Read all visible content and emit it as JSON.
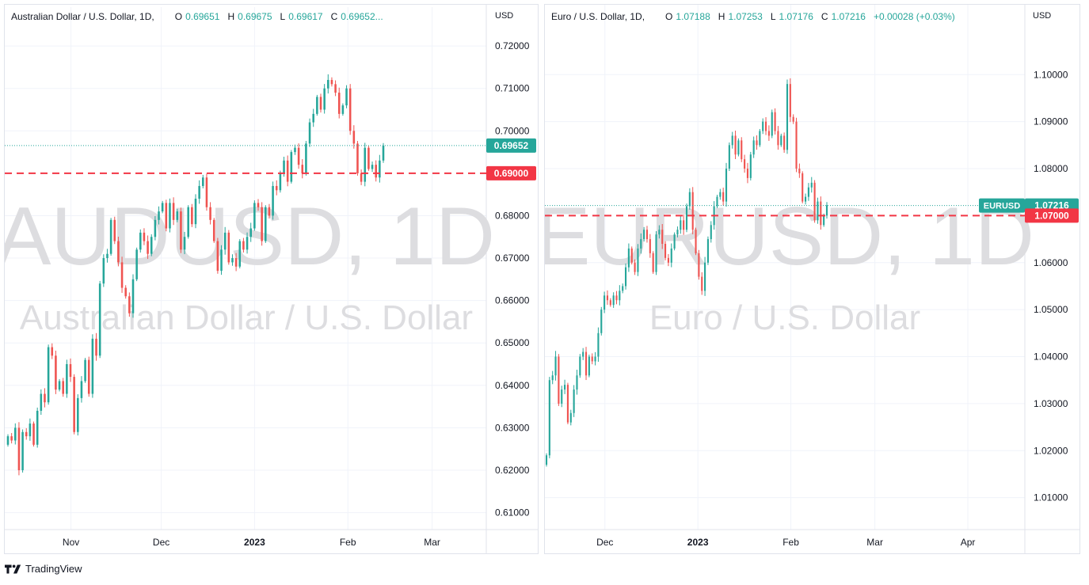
{
  "footer": {
    "brand": "TradingView",
    "logo_icon": "tradingview-logo-icon"
  },
  "colors": {
    "up": "#26a69a",
    "down": "#ef5350",
    "level": "#f23645",
    "grid": "#f0f3fa",
    "watermark": "#dddde0"
  },
  "chart_data": [
    {
      "type": "candlestick",
      "symbol": "AUDUSD",
      "title": "Australian Dollar / U.S. Dollar, 1D,",
      "watermark_symbol": "AUDUSD, 1D",
      "watermark_name": "Australian Dollar / U.S. Dollar",
      "currency": "USD",
      "ohlc_legend": {
        "O": "0.69651",
        "H": "0.69675",
        "L": "0.69617",
        "C": "0.69652..."
      },
      "ylim": [
        0.606,
        0.7245
      ],
      "y_ticks": [
        "0.72000",
        "0.71000",
        "0.70000",
        "0.68000",
        "0.67000",
        "0.66000",
        "0.65000",
        "0.64000",
        "0.63000",
        "0.62000",
        "0.61000"
      ],
      "x_ticks": [
        {
          "label": "Nov",
          "date": "2022-11-01",
          "bold": false
        },
        {
          "label": "Dec",
          "date": "2022-12-01",
          "bold": false
        },
        {
          "label": "2023",
          "date": "2023-01-01",
          "bold": true
        },
        {
          "label": "Feb",
          "date": "2023-02-01",
          "bold": false
        },
        {
          "label": "Mar",
          "date": "2023-03-01",
          "bold": false
        }
      ],
      "x_range": [
        "2022-10-10",
        "2023-03-19"
      ],
      "last_price": {
        "value": 0.69652,
        "label": "0.69652"
      },
      "level": {
        "value": 0.69,
        "label": "0.69000"
      },
      "closes": [
        0.628,
        0.627,
        0.63,
        0.62,
        0.629,
        0.628,
        0.631,
        0.626,
        0.634,
        0.638,
        0.636,
        0.649,
        0.647,
        0.639,
        0.641,
        0.638,
        0.645,
        0.642,
        0.629,
        0.637,
        0.641,
        0.646,
        0.638,
        0.651,
        0.647,
        0.664,
        0.67,
        0.671,
        0.679,
        0.674,
        0.669,
        0.663,
        0.661,
        0.657,
        0.665,
        0.672,
        0.676,
        0.674,
        0.671,
        0.675,
        0.679,
        0.681,
        0.683,
        0.677,
        0.683,
        0.679,
        0.681,
        0.672,
        0.675,
        0.682,
        0.678,
        0.684,
        0.687,
        0.689,
        0.682,
        0.679,
        0.674,
        0.667,
        0.672,
        0.676,
        0.669,
        0.67,
        0.668,
        0.674,
        0.672,
        0.675,
        0.677,
        0.683,
        0.682,
        0.674,
        0.682,
        0.68,
        0.687,
        0.686,
        0.69,
        0.693,
        0.688,
        0.695,
        0.696,
        0.692,
        0.69,
        0.697,
        0.702,
        0.704,
        0.708,
        0.705,
        0.71,
        0.712,
        0.711,
        0.709,
        0.704,
        0.706,
        0.71,
        0.7,
        0.697,
        0.69,
        0.688,
        0.696,
        0.691,
        0.692,
        0.689,
        0.693,
        0.6965
      ]
    },
    {
      "type": "candlestick",
      "symbol": "EURUSD",
      "title": "Euro / U.S. Dollar, 1D,",
      "watermark_symbol": "EURUSD, 1D",
      "watermark_name": "Euro / U.S. Dollar",
      "currency": "USD",
      "ohlc_legend": {
        "O": "1.07188",
        "H": "1.07253",
        "L": "1.07176",
        "C": "1.07216",
        "change": "+0.00028 (+0.03%)"
      },
      "ylim": [
        1.0032,
        1.1115
      ],
      "y_ticks": [
        "1.10000",
        "1.09000",
        "1.08000",
        "1.06000",
        "1.05000",
        "1.04000",
        "1.03000",
        "1.02000",
        "1.01000"
      ],
      "x_ticks": [
        {
          "label": "Dec",
          "date": "2022-12-01",
          "bold": false
        },
        {
          "label": "2023",
          "date": "2023-01-01",
          "bold": true
        },
        {
          "label": "Feb",
          "date": "2023-02-01",
          "bold": false
        },
        {
          "label": "Mar",
          "date": "2023-03-01",
          "bold": false
        },
        {
          "label": "Apr",
          "date": "2023-04-01",
          "bold": false
        }
      ],
      "x_range": [
        "2022-11-11",
        "2023-04-20"
      ],
      "last_price": {
        "value": 1.07216,
        "label": "1.07216",
        "tag": "EURUSD"
      },
      "level": {
        "value": 1.07,
        "label": "1.07000"
      },
      "closes": [
        1.019,
        1.035,
        1.036,
        1.04,
        1.03,
        1.033,
        1.034,
        1.026,
        1.028,
        1.033,
        1.036,
        1.04,
        1.041,
        1.036,
        1.04,
        1.039,
        1.04,
        1.045,
        1.05,
        1.053,
        1.052,
        1.051,
        1.053,
        1.052,
        1.054,
        1.055,
        1.059,
        1.063,
        1.06,
        1.058,
        1.063,
        1.065,
        1.067,
        1.065,
        1.062,
        1.058,
        1.066,
        1.067,
        1.064,
        1.061,
        1.06,
        1.063,
        1.066,
        1.067,
        1.069,
        1.067,
        1.072,
        1.075,
        1.067,
        1.062,
        1.057,
        1.054,
        1.06,
        1.065,
        1.068,
        1.072,
        1.074,
        1.075,
        1.073,
        1.08,
        1.085,
        1.087,
        1.083,
        1.086,
        1.082,
        1.08,
        1.078,
        1.083,
        1.086,
        1.085,
        1.088,
        1.09,
        1.088,
        1.087,
        1.092,
        1.088,
        1.085,
        1.087,
        1.084,
        1.098,
        1.091,
        1.09,
        1.08,
        1.079,
        1.073,
        1.074,
        1.076,
        1.077,
        1.069,
        1.073,
        1.068,
        1.07,
        1.0722
      ]
    }
  ]
}
